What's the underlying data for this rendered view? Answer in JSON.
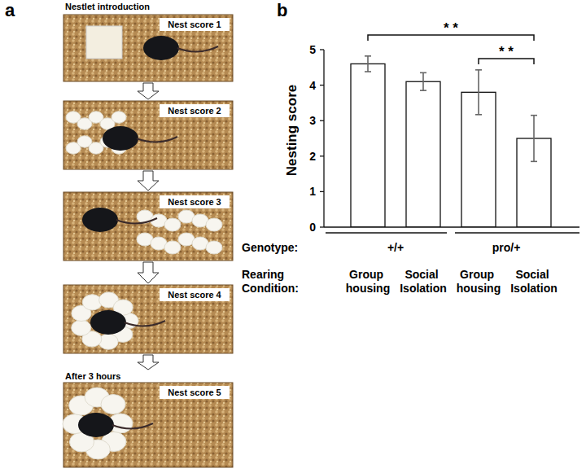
{
  "panel_a": {
    "label": "a",
    "header": "Nestlet introduction",
    "note": "After 3 hours",
    "images": [
      {
        "label": "Nest score 1"
      },
      {
        "label": "Nest score 2"
      },
      {
        "label": "Nest score 3"
      },
      {
        "label": "Nest score 4"
      },
      {
        "label": "Nest score 5"
      }
    ]
  },
  "chart_data": {
    "type": "bar",
    "panel_label": "b",
    "y_label": "Nesting score",
    "categories": [
      "Group housing",
      "Social Isolation",
      "Group housing",
      "Social Isolation"
    ],
    "values": [
      4.6,
      4.1,
      3.8,
      2.5
    ],
    "errors": [
      0.22,
      0.25,
      0.63,
      0.65
    ],
    "color": "#ffffff",
    "ylim": [
      0,
      5
    ],
    "yticks": [
      0,
      1,
      2,
      3,
      4,
      5
    ],
    "row_labels": [
      "Genotype:",
      "Rearing Condition:"
    ],
    "groups": [
      {
        "label": "+/+",
        "span": [
          0,
          1
        ]
      },
      {
        "label": "pro/+",
        "span": [
          2,
          3
        ]
      }
    ],
    "annotations": [
      {
        "text": "* *",
        "span": [
          0,
          3
        ]
      },
      {
        "text": "* *",
        "span": [
          2,
          3
        ]
      }
    ]
  }
}
